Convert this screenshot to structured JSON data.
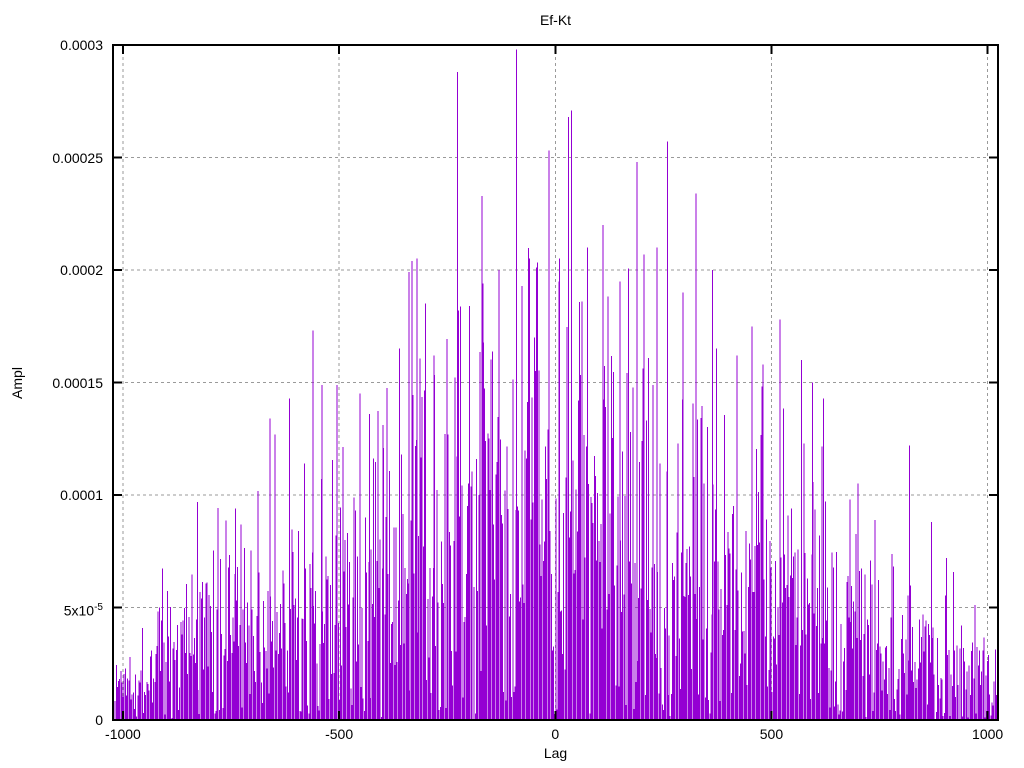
{
  "chart_data": {
    "type": "impulses",
    "title": "Ef-Kt",
    "xlabel": "Lag",
    "ylabel": "Ampl",
    "xlim": [
      -1023,
      1024
    ],
    "ylim": [
      0,
      0.0003
    ],
    "xticks": [
      {
        "v": -1000,
        "label": "-1000"
      },
      {
        "v": -500,
        "label": "-500"
      },
      {
        "v": 0,
        "label": "0"
      },
      {
        "v": 500,
        "label": "500"
      },
      {
        "v": 1000,
        "label": "1000"
      }
    ],
    "yticks": [
      {
        "v": 0,
        "label": "0"
      },
      {
        "v": 5e-05,
        "label": "5x10",
        "sup": "-5"
      },
      {
        "v": 0.0001,
        "label": "0.0001"
      },
      {
        "v": 0.00015,
        "label": "0.00015"
      },
      {
        "v": 0.0002,
        "label": "0.0002"
      },
      {
        "v": 0.00025,
        "label": "0.00025"
      },
      {
        "v": 0.0003,
        "label": "0.0003"
      }
    ],
    "grid": true,
    "legend": "none",
    "series_color": "#9400D3",
    "grid_color": "#9a9a9a",
    "border_color": "#000000",
    "background": "#ffffff",
    "n_impulses": 780,
    "seed": 1337,
    "envelope_points": [
      [
        -1018,
        3.2e-05
      ],
      [
        -1000,
        3.8e-05
      ],
      [
        -950,
        5.2e-05
      ],
      [
        -900,
        6.5e-05
      ],
      [
        -850,
        7.2e-05
      ],
      [
        -800,
        8e-05
      ],
      [
        -750,
        9e-05
      ],
      [
        -700,
        8.8e-05
      ],
      [
        -650,
        0.0001
      ],
      [
        -600,
        0.000108
      ],
      [
        -550,
        0.000112
      ],
      [
        -500,
        0.000118
      ],
      [
        -450,
        0.000122
      ],
      [
        -400,
        0.000128
      ],
      [
        -350,
        0.000145
      ],
      [
        -300,
        0.000155
      ],
      [
        -250,
        0.000162
      ],
      [
        -200,
        0.00017
      ],
      [
        -150,
        0.000178
      ],
      [
        -100,
        0.000185
      ],
      [
        -50,
        0.000188
      ],
      [
        0,
        0.00019
      ],
      [
        50,
        0.000188
      ],
      [
        100,
        0.000185
      ],
      [
        150,
        0.00018
      ],
      [
        200,
        0.000178
      ],
      [
        250,
        0.000172
      ],
      [
        300,
        0.000162
      ],
      [
        350,
        0.000152
      ],
      [
        400,
        0.000142
      ],
      [
        450,
        0.000138
      ],
      [
        500,
        0.000128
      ],
      [
        550,
        0.00012
      ],
      [
        600,
        0.000112
      ],
      [
        650,
        0.000102
      ],
      [
        700,
        9.2e-05
      ],
      [
        750,
        8.2e-05
      ],
      [
        800,
        7.6e-05
      ],
      [
        850,
        7e-05
      ],
      [
        900,
        6.2e-05
      ],
      [
        950,
        5.4e-05
      ],
      [
        1000,
        4.6e-05
      ],
      [
        1024,
        4.2e-05
      ]
    ],
    "peak_impulses": [
      [
        -827,
        9.7e-05
      ],
      [
        -740,
        9.4e-05
      ],
      [
        -660,
        0.000134
      ],
      [
        -648,
        0.000127
      ],
      [
        -615,
        0.000143
      ],
      [
        -560,
        0.000173
      ],
      [
        -540,
        0.000149
      ],
      [
        -505,
        0.000149
      ],
      [
        -452,
        0.000145
      ],
      [
        -430,
        0.000136
      ],
      [
        -398,
        0.000131
      ],
      [
        -360,
        0.000165
      ],
      [
        -338,
        0.000199
      ],
      [
        -331,
        0.000204
      ],
      [
        -320,
        0.000205
      ],
      [
        -300,
        0.000185
      ],
      [
        -280,
        0.000162
      ],
      [
        -226,
        0.000288
      ],
      [
        -198,
        0.000184
      ],
      [
        -170,
        0.000233
      ],
      [
        -167,
        0.000194
      ],
      [
        -130,
        0.0002
      ],
      [
        -90,
        0.000298
      ],
      [
        -60,
        0.000205
      ],
      [
        -14,
        0.000253
      ],
      [
        10,
        0.000205
      ],
      [
        30,
        0.000268
      ],
      [
        38,
        0.000271
      ],
      [
        75,
        0.00021
      ],
      [
        110,
        0.00022
      ],
      [
        150,
        0.000195
      ],
      [
        189,
        0.000248
      ],
      [
        205,
        0.000207
      ],
      [
        235,
        0.00021
      ],
      [
        260,
        0.000257
      ],
      [
        295,
        0.00019
      ],
      [
        325,
        0.000234
      ],
      [
        364,
        0.0002
      ],
      [
        420,
        0.000162
      ],
      [
        455,
        0.000175
      ],
      [
        480,
        0.000158
      ],
      [
        520,
        0.000178
      ],
      [
        570,
        0.00016
      ],
      [
        595,
        0.00015
      ],
      [
        620,
        0.000143
      ],
      [
        682,
        9.8e-05
      ],
      [
        700,
        0.000105
      ],
      [
        819,
        0.000122
      ],
      [
        870,
        8.8e-05
      ],
      [
        905,
        7.2e-05
      ]
    ]
  }
}
